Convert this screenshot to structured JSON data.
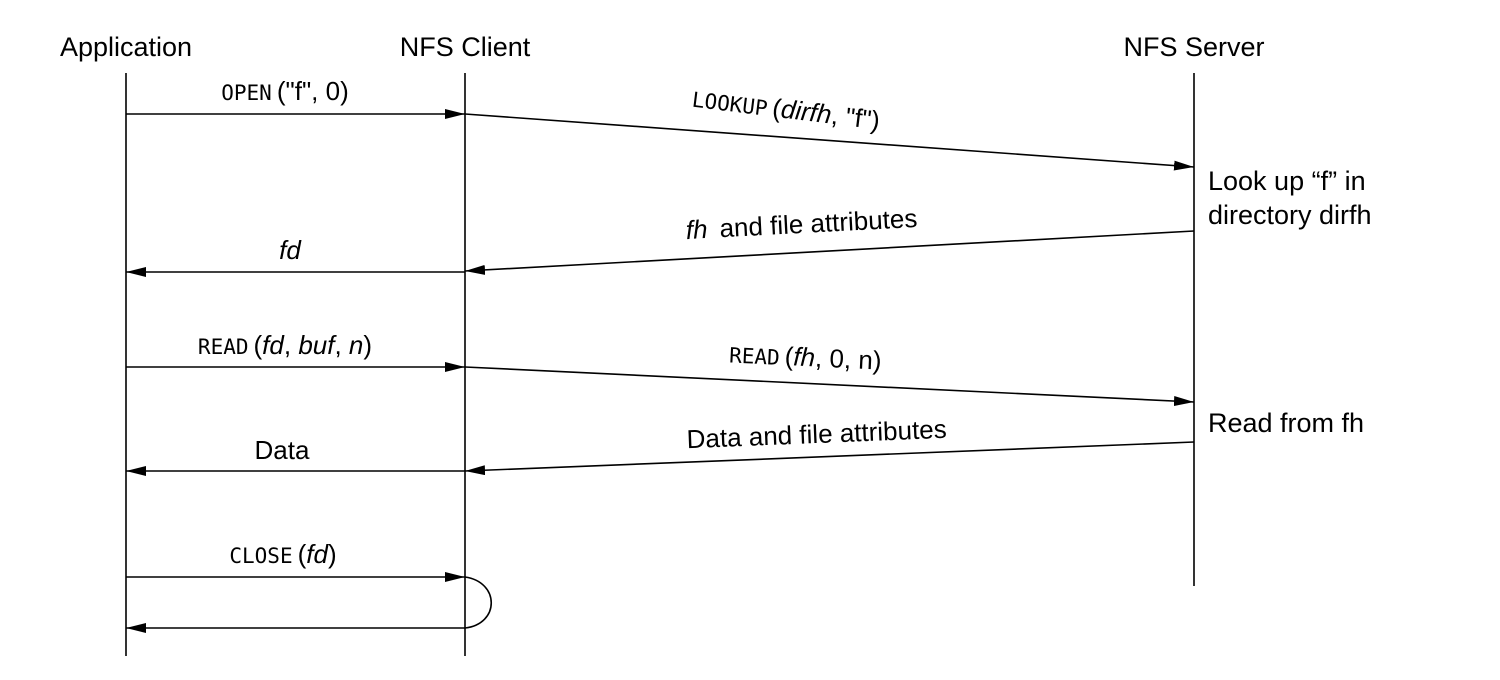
{
  "lanes": {
    "application": "Application",
    "client": "NFS Client",
    "server": "NFS Server"
  },
  "messages": {
    "open": {
      "call": "OPEN",
      "args_plain": "(\"f\", 0)"
    },
    "lookup": {
      "call": "LOOKUP",
      "open_paren": "(",
      "arg1": "dirfh",
      "rest": ", \"f\")"
    },
    "fh_reply": {
      "fh": "fh",
      "text": "and file attributes"
    },
    "fd_return": "fd",
    "read_app": {
      "call": "READ",
      "open_paren": "(",
      "fd": "fd",
      "sep1": ", ",
      "buf": "buf",
      "sep2": ", ",
      "n": "n",
      "close_paren": ")"
    },
    "read_srv": {
      "call": "READ",
      "open_paren": "(",
      "fh": "fh",
      "rest": ", 0, n)"
    },
    "data_reply": "Data and file attributes",
    "data_return": "Data",
    "close": {
      "call": "CLOSE",
      "open_paren": "(",
      "fd": "fd",
      "close_paren": ")"
    }
  },
  "server_notes": {
    "lookup_line1": "Look up “f” in",
    "lookup_line2": "directory dirfh",
    "read": "Read from fh"
  }
}
